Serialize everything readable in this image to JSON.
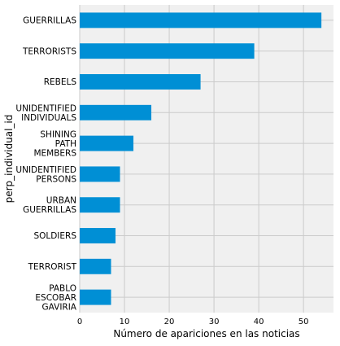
{
  "chart_data": {
    "type": "bar",
    "orientation": "horizontal",
    "categories": [
      "GUERRILLAS",
      "TERRORISTS",
      "REBELS",
      "UNIDENTIFIED\nINDIVIDUALS",
      "SHINING\nPATH\nMEMBERS",
      "UNIDENTIFIED\nPERSONS",
      "URBAN\nGUERRILLAS",
      "SOLDIERS",
      "TERRORIST",
      "PABLO\nESCOBAR\nGAVIRIA"
    ],
    "values": [
      54,
      39,
      27,
      16,
      12,
      9,
      9,
      8,
      7,
      7
    ],
    "xlabel": "Número de apariciones en las noticias",
    "ylabel": "perp_individual_id",
    "xlim": [
      0,
      56.7
    ],
    "xticks": [
      0,
      10,
      20,
      30,
      40,
      50
    ],
    "grid": true,
    "bar_color": "#008fd5",
    "background_color": "#f0f0f0",
    "grid_color": "#cbcbcb"
  }
}
